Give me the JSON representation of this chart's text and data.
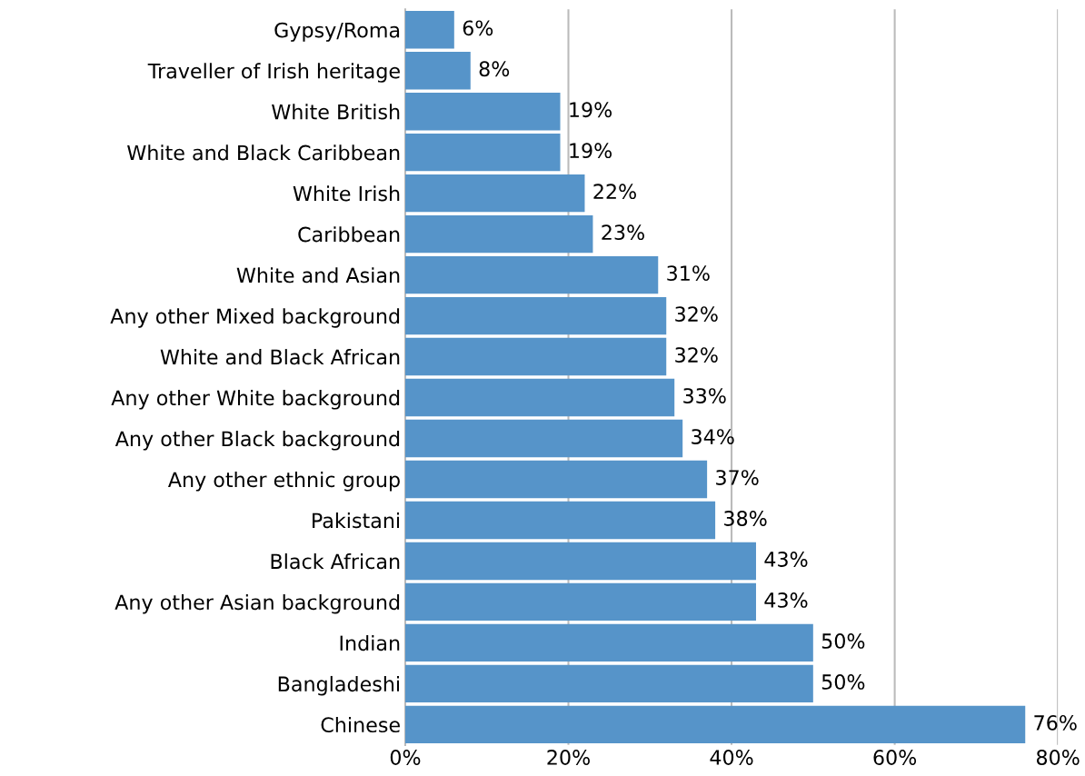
{
  "chart_data": {
    "type": "bar",
    "orientation": "horizontal",
    "categories": [
      "Gypsy/Roma",
      "Traveller of Irish heritage",
      "White British",
      "White and Black Caribbean",
      "White Irish",
      "Caribbean",
      "White and Asian",
      "Any other Mixed background",
      "White and Black African",
      "Any other White background",
      "Any other Black background",
      "Any other ethnic group",
      "Pakistani",
      "Black African",
      "Any other Asian background",
      "Indian",
      "Bangladeshi",
      "Chinese"
    ],
    "values": [
      6,
      8,
      19,
      19,
      22,
      23,
      31,
      32,
      32,
      33,
      34,
      37,
      38,
      43,
      43,
      50,
      50,
      76
    ],
    "value_labels": [
      "6%",
      "8%",
      "19%",
      "19%",
      "22%",
      "23%",
      "31%",
      "32%",
      "32%",
      "33%",
      "34%",
      "37%",
      "38%",
      "43%",
      "43%",
      "50%",
      "50%",
      "76%"
    ],
    "color": "#5694c9",
    "xlim": [
      0,
      80
    ],
    "xticks": [
      {
        "value": 0,
        "label": "0%"
      },
      {
        "value": 20,
        "label": "20%"
      },
      {
        "value": 40,
        "label": "40%"
      },
      {
        "value": 60,
        "label": "60%"
      },
      {
        "value": 80,
        "label": "80%"
      }
    ],
    "grid": "x",
    "legend": false
  }
}
